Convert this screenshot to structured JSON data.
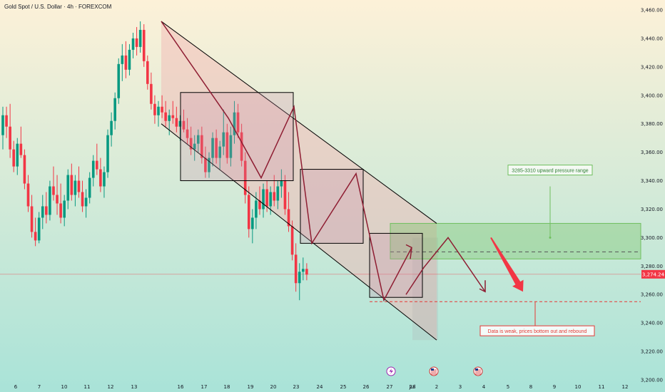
{
  "header": {
    "title": "Gold Spot / U.S. Dollar · 4h · FOREXCOM"
  },
  "price_tag": {
    "value": "3,274.24",
    "color": "#f23645"
  },
  "colors": {
    "bg_top": "#fdf1d8",
    "bg_bottom": "#a9e3d8",
    "candle_up": "#089981",
    "candle_down": "#f23645",
    "channel_stroke": "#000000",
    "channel_fill": "#f2b3b3",
    "zigzag": "#8e1d32",
    "pressure_zone": "#6fbf5e",
    "support_line": "#e53935",
    "big_arrow": "#f23645"
  },
  "annotations": {
    "pressure_label": "3285-3310 upward pressure range",
    "support_label": "Data is weak, prices bottom out and rebound"
  },
  "icons": [
    "lightning-icon",
    "us-flag-icon",
    "us-flag-icon"
  ],
  "chart_data": {
    "type": "candlestick",
    "title": "Gold Spot / U.S. Dollar · 4h · FOREXCOM",
    "y_ticks": [
      "3,460.00",
      "3,440.00",
      "3,420.00",
      "3,400.00",
      "3,380.00",
      "3,360.00",
      "3,340.00",
      "3,320.00",
      "3,300.00",
      "3,280.00",
      "3,260.00",
      "3,240.00",
      "3,220.00",
      "3,200.00"
    ],
    "y_values": [
      3460,
      3440,
      3420,
      3400,
      3380,
      3360,
      3340,
      3320,
      3300,
      3280,
      3260,
      3240,
      3220,
      3200
    ],
    "ylim": [
      3199,
      3464
    ],
    "x_ticks": [
      "6",
      "7",
      "10",
      "11",
      "12",
      "13",
      "16",
      "17",
      "18",
      "19",
      "20",
      "23",
      "24",
      "25",
      "26",
      "27",
      "28",
      "Jul",
      "2",
      "3",
      "4",
      "5",
      "8",
      "9",
      "10",
      "11",
      "12"
    ],
    "last_price": 3274.24,
    "pressure_range": [
      3285,
      3310
    ],
    "pressure_mid": 3290,
    "support_level": 3255,
    "candles": [
      {
        "o": 3372,
        "h": 3392,
        "l": 3362,
        "c": 3386
      },
      {
        "o": 3386,
        "h": 3392,
        "l": 3370,
        "c": 3378
      },
      {
        "o": 3378,
        "h": 3394,
        "l": 3356,
        "c": 3362
      },
      {
        "o": 3362,
        "h": 3368,
        "l": 3346,
        "c": 3350
      },
      {
        "o": 3350,
        "h": 3370,
        "l": 3344,
        "c": 3366
      },
      {
        "o": 3366,
        "h": 3378,
        "l": 3356,
        "c": 3358
      },
      {
        "o": 3358,
        "h": 3362,
        "l": 3334,
        "c": 3338
      },
      {
        "o": 3338,
        "h": 3344,
        "l": 3318,
        "c": 3322
      },
      {
        "o": 3322,
        "h": 3330,
        "l": 3300,
        "c": 3304
      },
      {
        "o": 3304,
        "h": 3314,
        "l": 3294,
        "c": 3298
      },
      {
        "o": 3298,
        "h": 3318,
        "l": 3296,
        "c": 3314
      },
      {
        "o": 3314,
        "h": 3330,
        "l": 3306,
        "c": 3322
      },
      {
        "o": 3322,
        "h": 3332,
        "l": 3310,
        "c": 3316
      },
      {
        "o": 3316,
        "h": 3340,
        "l": 3312,
        "c": 3336
      },
      {
        "o": 3336,
        "h": 3350,
        "l": 3326,
        "c": 3330
      },
      {
        "o": 3330,
        "h": 3344,
        "l": 3316,
        "c": 3324
      },
      {
        "o": 3324,
        "h": 3338,
        "l": 3310,
        "c": 3314
      },
      {
        "o": 3314,
        "h": 3330,
        "l": 3308,
        "c": 3326
      },
      {
        "o": 3326,
        "h": 3348,
        "l": 3320,
        "c": 3344
      },
      {
        "o": 3344,
        "h": 3352,
        "l": 3326,
        "c": 3330
      },
      {
        "o": 3330,
        "h": 3344,
        "l": 3322,
        "c": 3340
      },
      {
        "o": 3340,
        "h": 3350,
        "l": 3328,
        "c": 3332
      },
      {
        "o": 3332,
        "h": 3340,
        "l": 3318,
        "c": 3322
      },
      {
        "o": 3322,
        "h": 3334,
        "l": 3314,
        "c": 3328
      },
      {
        "o": 3328,
        "h": 3346,
        "l": 3324,
        "c": 3342
      },
      {
        "o": 3342,
        "h": 3358,
        "l": 3336,
        "c": 3354
      },
      {
        "o": 3354,
        "h": 3366,
        "l": 3344,
        "c": 3348
      },
      {
        "o": 3348,
        "h": 3356,
        "l": 3332,
        "c": 3336
      },
      {
        "o": 3336,
        "h": 3350,
        "l": 3328,
        "c": 3346
      },
      {
        "o": 3346,
        "h": 3376,
        "l": 3342,
        "c": 3372
      },
      {
        "o": 3372,
        "h": 3388,
        "l": 3364,
        "c": 3382
      },
      {
        "o": 3382,
        "h": 3402,
        "l": 3376,
        "c": 3398
      },
      {
        "o": 3398,
        "h": 3426,
        "l": 3394,
        "c": 3422
      },
      {
        "o": 3422,
        "h": 3436,
        "l": 3410,
        "c": 3428
      },
      {
        "o": 3428,
        "h": 3438,
        "l": 3412,
        "c": 3418
      },
      {
        "o": 3418,
        "h": 3436,
        "l": 3414,
        "c": 3432
      },
      {
        "o": 3432,
        "h": 3444,
        "l": 3426,
        "c": 3440
      },
      {
        "o": 3440,
        "h": 3448,
        "l": 3428,
        "c": 3434
      },
      {
        "o": 3434,
        "h": 3452,
        "l": 3430,
        "c": 3446
      },
      {
        "o": 3446,
        "h": 3450,
        "l": 3420,
        "c": 3424
      },
      {
        "o": 3424,
        "h": 3428,
        "l": 3404,
        "c": 3408
      },
      {
        "o": 3408,
        "h": 3416,
        "l": 3390,
        "c": 3394
      },
      {
        "o": 3394,
        "h": 3400,
        "l": 3380,
        "c": 3386
      },
      {
        "o": 3386,
        "h": 3396,
        "l": 3378,
        "c": 3392
      },
      {
        "o": 3392,
        "h": 3400,
        "l": 3384,
        "c": 3388
      },
      {
        "o": 3388,
        "h": 3396,
        "l": 3378,
        "c": 3382
      },
      {
        "o": 3382,
        "h": 3390,
        "l": 3372,
        "c": 3386
      },
      {
        "o": 3386,
        "h": 3396,
        "l": 3380,
        "c": 3384
      },
      {
        "o": 3384,
        "h": 3392,
        "l": 3374,
        "c": 3378
      },
      {
        "o": 3378,
        "h": 3386,
        "l": 3368,
        "c": 3382
      },
      {
        "o": 3382,
        "h": 3390,
        "l": 3374,
        "c": 3376
      },
      {
        "o": 3376,
        "h": 3384,
        "l": 3366,
        "c": 3370
      },
      {
        "o": 3370,
        "h": 3378,
        "l": 3358,
        "c": 3362
      },
      {
        "o": 3362,
        "h": 3372,
        "l": 3354,
        "c": 3366
      },
      {
        "o": 3366,
        "h": 3376,
        "l": 3360,
        "c": 3372
      },
      {
        "o": 3372,
        "h": 3378,
        "l": 3352,
        "c": 3356
      },
      {
        "o": 3356,
        "h": 3364,
        "l": 3342,
        "c": 3346
      },
      {
        "o": 3346,
        "h": 3360,
        "l": 3342,
        "c": 3356
      },
      {
        "o": 3356,
        "h": 3374,
        "l": 3350,
        "c": 3370
      },
      {
        "o": 3370,
        "h": 3376,
        "l": 3352,
        "c": 3356
      },
      {
        "o": 3356,
        "h": 3368,
        "l": 3348,
        "c": 3364
      },
      {
        "o": 3364,
        "h": 3390,
        "l": 3358,
        "c": 3374
      },
      {
        "o": 3374,
        "h": 3380,
        "l": 3352,
        "c": 3356
      },
      {
        "o": 3356,
        "h": 3378,
        "l": 3350,
        "c": 3372
      },
      {
        "o": 3372,
        "h": 3396,
        "l": 3366,
        "c": 3388
      },
      {
        "o": 3388,
        "h": 3394,
        "l": 3370,
        "c": 3374
      },
      {
        "o": 3374,
        "h": 3380,
        "l": 3350,
        "c": 3354
      },
      {
        "o": 3354,
        "h": 3360,
        "l": 3324,
        "c": 3330
      },
      {
        "o": 3330,
        "h": 3336,
        "l": 3300,
        "c": 3306
      },
      {
        "o": 3306,
        "h": 3320,
        "l": 3296,
        "c": 3314
      },
      {
        "o": 3314,
        "h": 3332,
        "l": 3306,
        "c": 3326
      },
      {
        "o": 3326,
        "h": 3336,
        "l": 3316,
        "c": 3320
      },
      {
        "o": 3320,
        "h": 3338,
        "l": 3314,
        "c": 3334
      },
      {
        "o": 3334,
        "h": 3340,
        "l": 3318,
        "c": 3322
      },
      {
        "o": 3322,
        "h": 3336,
        "l": 3316,
        "c": 3332
      },
      {
        "o": 3332,
        "h": 3344,
        "l": 3322,
        "c": 3326
      },
      {
        "o": 3326,
        "h": 3340,
        "l": 3320,
        "c": 3336
      },
      {
        "o": 3336,
        "h": 3348,
        "l": 3328,
        "c": 3340
      },
      {
        "o": 3340,
        "h": 3344,
        "l": 3316,
        "c": 3320
      },
      {
        "o": 3320,
        "h": 3332,
        "l": 3304,
        "c": 3308
      },
      {
        "o": 3308,
        "h": 3312,
        "l": 3284,
        "c": 3288
      },
      {
        "o": 3288,
        "h": 3296,
        "l": 3262,
        "c": 3268
      },
      {
        "o": 3268,
        "h": 3282,
        "l": 3256,
        "c": 3276
      },
      {
        "o": 3276,
        "h": 3286,
        "l": 3270,
        "c": 3278
      },
      {
        "o": 3278,
        "h": 3282,
        "l": 3270,
        "c": 3274
      }
    ]
  }
}
